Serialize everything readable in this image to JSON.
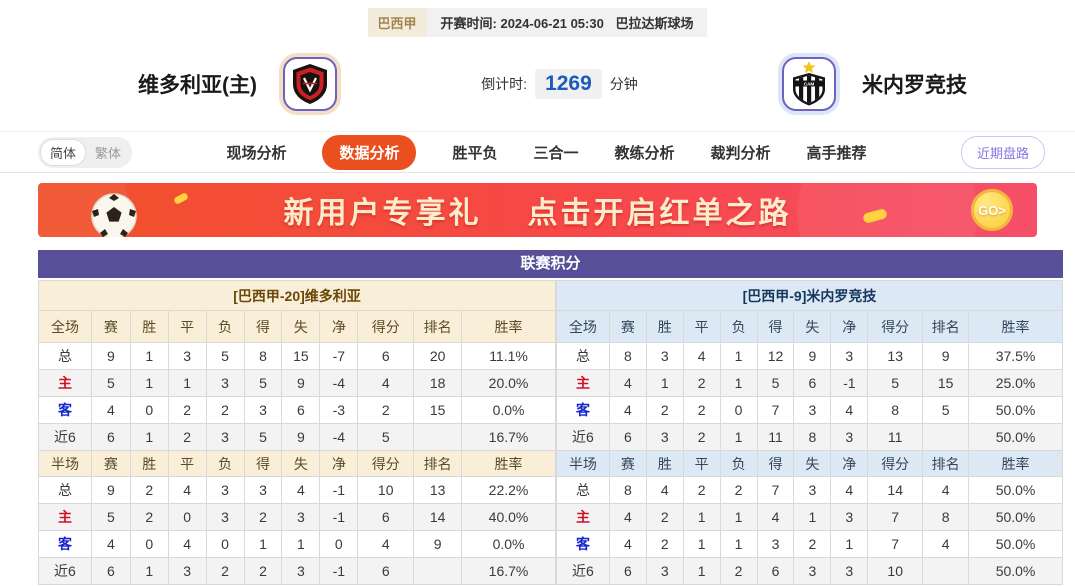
{
  "top_bar": {
    "league": "巴西甲",
    "kickoff": "开赛时间: 2024-06-21 05:30",
    "venue": "巴拉达斯球场"
  },
  "match_header": {
    "home_team": "维多利亚(主)",
    "away_team": "米内罗竞技",
    "countdown_label": "倒计时:",
    "countdown_value": "1269",
    "countdown_unit": "分钟"
  },
  "nav": {
    "lang_simplified": "简体",
    "lang_traditional": "繁体",
    "items": [
      "现场分析",
      "数据分析",
      "胜平负",
      "三合一",
      "教练分析",
      "裁判分析",
      "高手推荐"
    ],
    "active_item": "数据分析",
    "recent_odds_button": "近期盘路"
  },
  "banner": {
    "text_left": "新用户专享礼",
    "text_right": "点击开启红单之路",
    "go_button": "GO>"
  },
  "league_table": {
    "title": "联赛积分",
    "columns_full": [
      "全场",
      "赛",
      "胜",
      "平",
      "负",
      "得",
      "失",
      "净",
      "得分",
      "排名",
      "胜率"
    ],
    "columns_half": [
      "半场",
      "赛",
      "胜",
      "平",
      "负",
      "得",
      "失",
      "净",
      "得分",
      "排名",
      "胜率"
    ],
    "left": {
      "team_header": "[巴西甲-20]维多利亚",
      "full": [
        {
          "label": "总",
          "cells": [
            "9",
            "1",
            "3",
            "5",
            "8",
            "15",
            "-7",
            "6",
            "20",
            "11.1%"
          ]
        },
        {
          "label": "主",
          "cells": [
            "5",
            "1",
            "1",
            "3",
            "5",
            "9",
            "-4",
            "4",
            "18",
            "20.0%"
          ]
        },
        {
          "label": "客",
          "cells": [
            "4",
            "0",
            "2",
            "2",
            "3",
            "6",
            "-3",
            "2",
            "15",
            "0.0%"
          ]
        },
        {
          "label": "近6",
          "cells": [
            "6",
            "1",
            "2",
            "3",
            "5",
            "9",
            "-4",
            "5",
            "",
            "16.7%"
          ]
        }
      ],
      "half": [
        {
          "label": "总",
          "cells": [
            "9",
            "2",
            "4",
            "3",
            "3",
            "4",
            "-1",
            "10",
            "13",
            "22.2%"
          ]
        },
        {
          "label": "主",
          "cells": [
            "5",
            "2",
            "0",
            "3",
            "2",
            "3",
            "-1",
            "6",
            "14",
            "40.0%"
          ]
        },
        {
          "label": "客",
          "cells": [
            "4",
            "0",
            "4",
            "0",
            "1",
            "1",
            "0",
            "4",
            "9",
            "0.0%"
          ]
        },
        {
          "label": "近6",
          "cells": [
            "6",
            "1",
            "3",
            "2",
            "2",
            "3",
            "-1",
            "6",
            "",
            "16.7%"
          ]
        }
      ]
    },
    "right": {
      "team_header": "[巴西甲-9]米内罗竞技",
      "full": [
        {
          "label": "总",
          "cells": [
            "8",
            "3",
            "4",
            "1",
            "12",
            "9",
            "3",
            "13",
            "9",
            "37.5%"
          ]
        },
        {
          "label": "主",
          "cells": [
            "4",
            "1",
            "2",
            "1",
            "5",
            "6",
            "-1",
            "5",
            "15",
            "25.0%"
          ]
        },
        {
          "label": "客",
          "cells": [
            "4",
            "2",
            "2",
            "0",
            "7",
            "3",
            "4",
            "8",
            "5",
            "50.0%"
          ]
        },
        {
          "label": "近6",
          "cells": [
            "6",
            "3",
            "2",
            "1",
            "11",
            "8",
            "3",
            "11",
            "",
            "50.0%"
          ]
        }
      ],
      "half": [
        {
          "label": "总",
          "cells": [
            "8",
            "4",
            "2",
            "2",
            "7",
            "3",
            "4",
            "14",
            "4",
            "50.0%"
          ]
        },
        {
          "label": "主",
          "cells": [
            "4",
            "2",
            "1",
            "1",
            "4",
            "1",
            "3",
            "7",
            "8",
            "50.0%"
          ]
        },
        {
          "label": "客",
          "cells": [
            "4",
            "2",
            "1",
            "1",
            "3",
            "2",
            "1",
            "7",
            "4",
            "50.0%"
          ]
        },
        {
          "label": "近6",
          "cells": [
            "6",
            "3",
            "1",
            "2",
            "6",
            "3",
            "3",
            "10",
            "",
            "50.0%"
          ]
        }
      ]
    }
  },
  "colors": {
    "nav_active": "#ea501f",
    "table_title_bg": "#575098",
    "home_header_bg": "#f9efd8",
    "away_header_bg": "#dce9f5",
    "home_label_red": "#cf1322",
    "away_label_blue": "#1425cc",
    "countdown_blue": "#1b5abe",
    "banner_gradient_start": "#f1512b",
    "banner_gradient_end": "#f64f69"
  }
}
